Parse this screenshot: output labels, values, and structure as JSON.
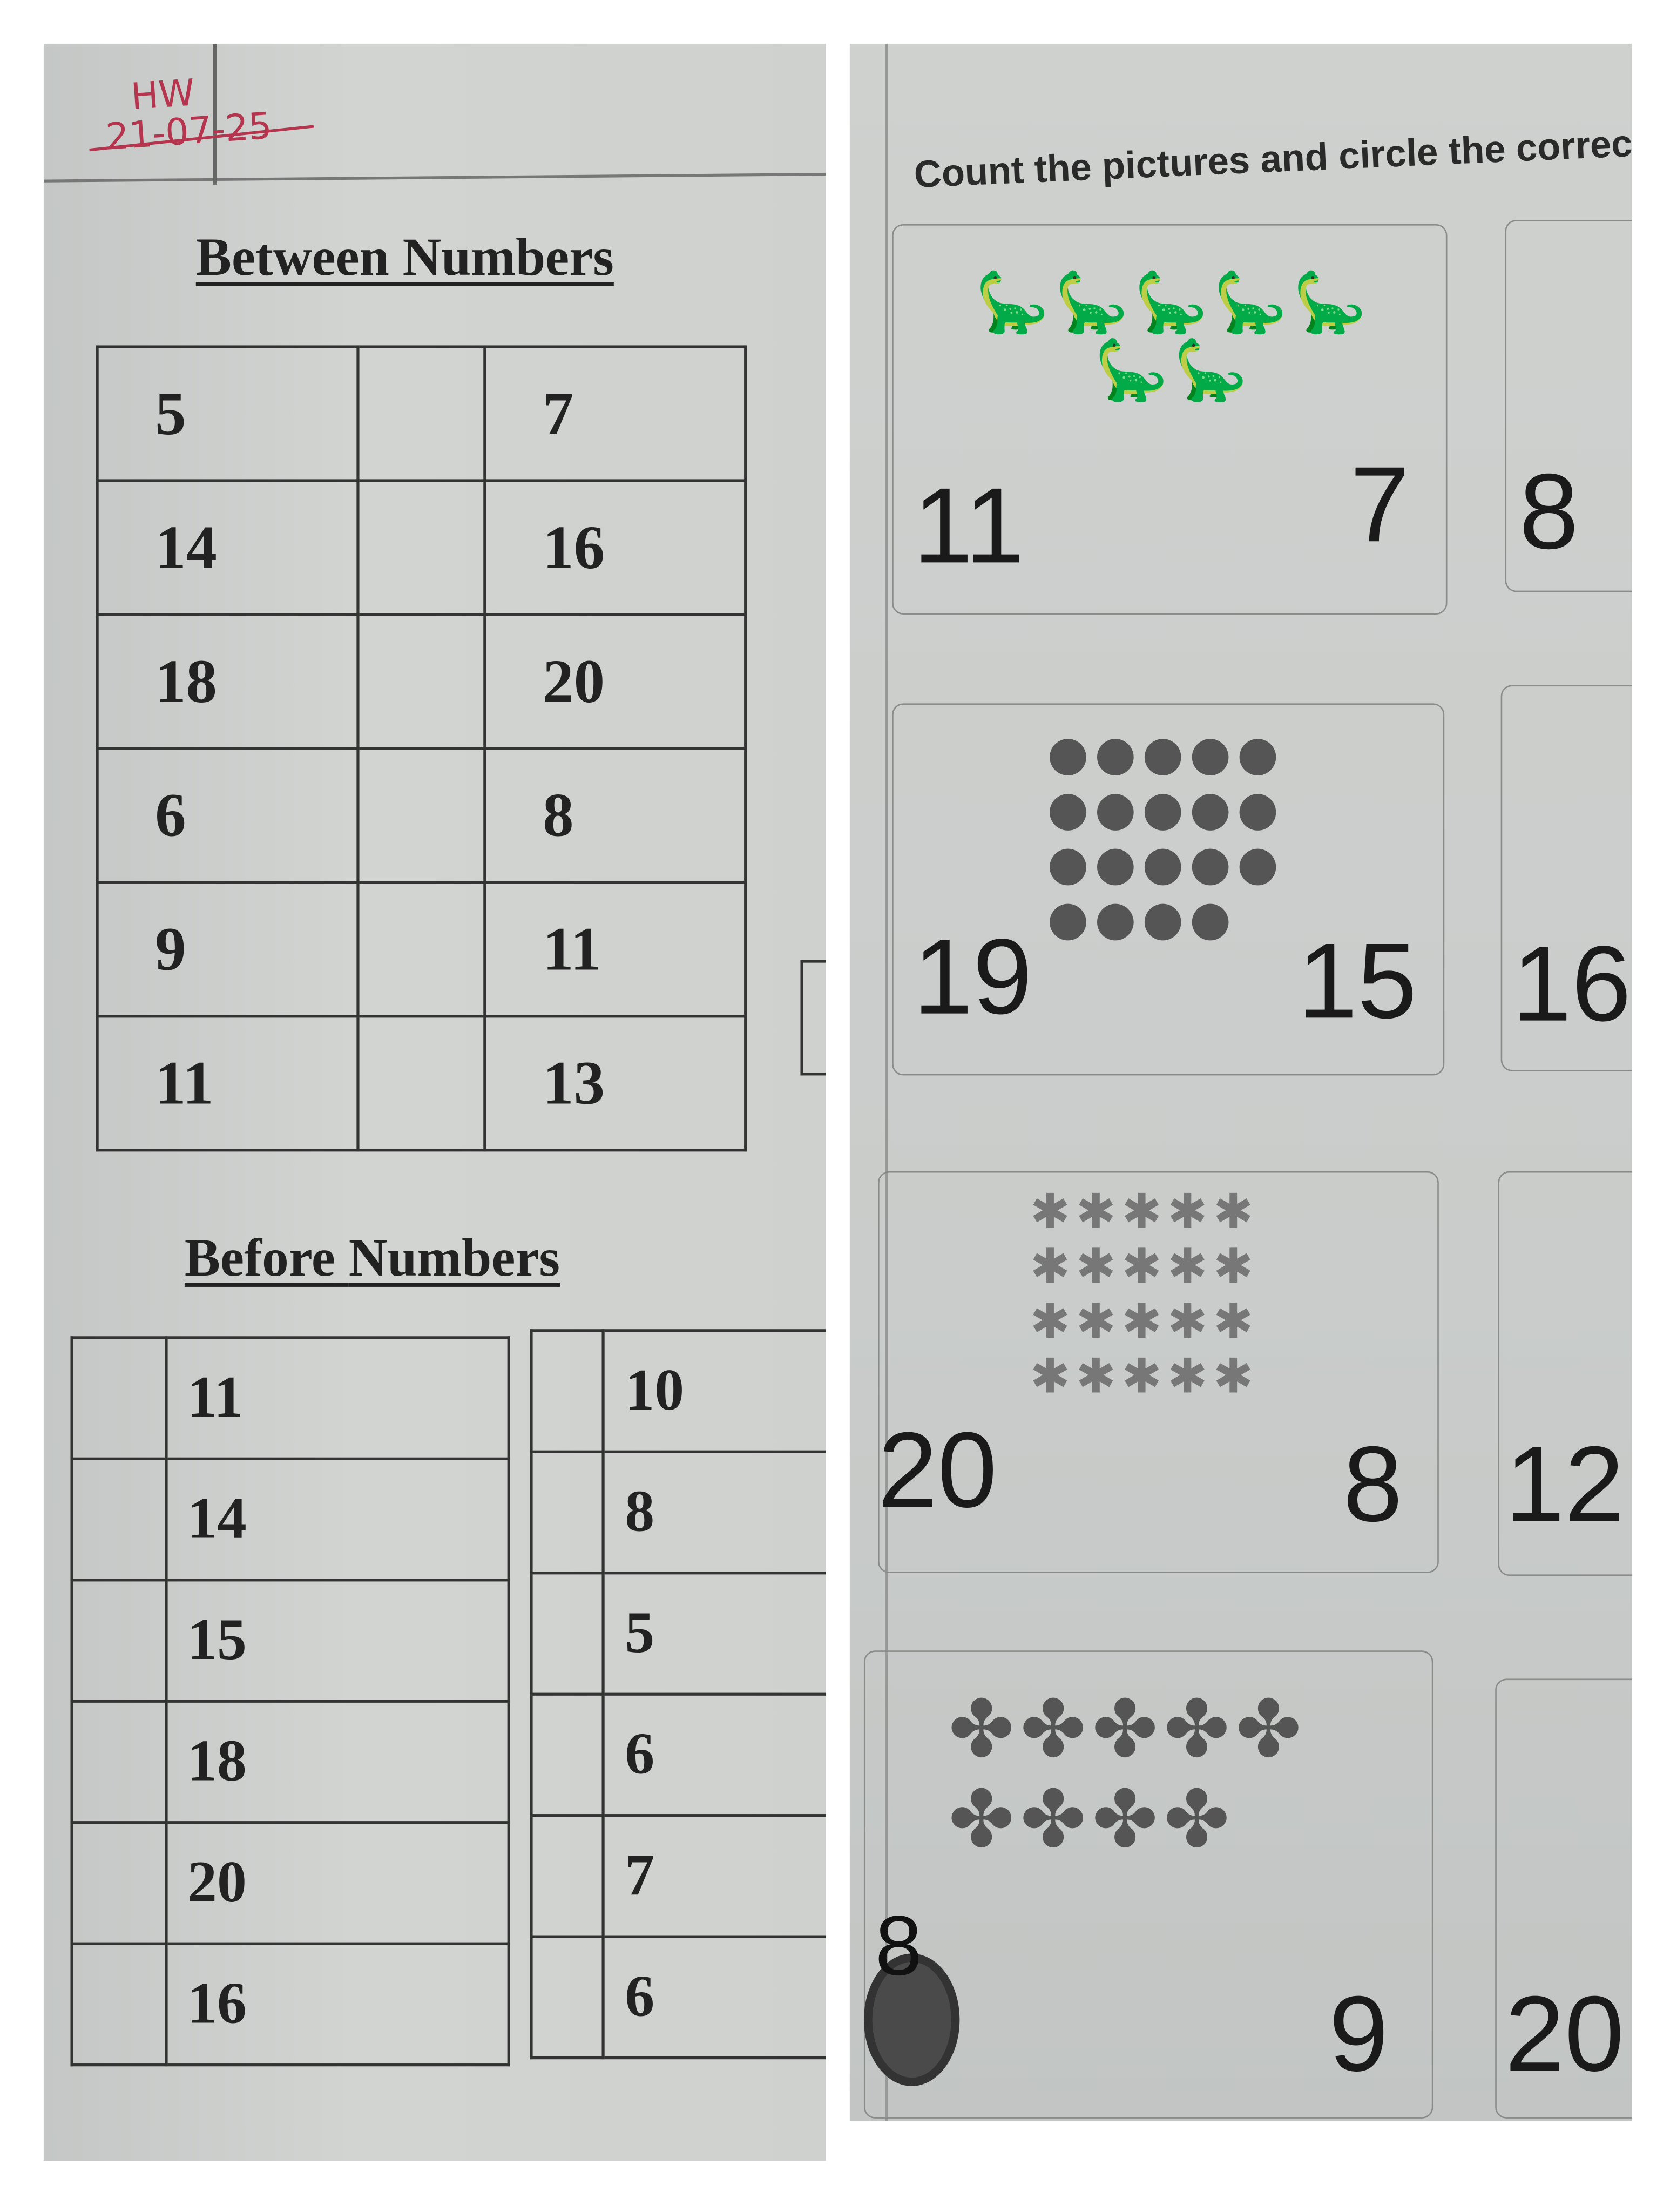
{
  "header": {
    "note": "HW",
    "date": "21-07-25",
    "ink_color": "#b5354f"
  },
  "between": {
    "title": "Between Numbers",
    "rows": [
      [
        "5",
        "",
        "7"
      ],
      [
        "14",
        "",
        "16"
      ],
      [
        "18",
        "",
        "20"
      ],
      [
        "6",
        "",
        "8"
      ],
      [
        "9",
        "",
        "11"
      ],
      [
        "11",
        "",
        "13"
      ]
    ]
  },
  "before": {
    "title_a": "Before",
    "title_b": "Numbers",
    "table_a": [
      [
        "",
        "11"
      ],
      [
        "",
        "14"
      ],
      [
        "",
        "15"
      ],
      [
        "",
        "18"
      ],
      [
        "",
        "20"
      ],
      [
        "",
        "16"
      ]
    ],
    "table_b": [
      [
        "",
        "10"
      ],
      [
        "",
        "8"
      ],
      [
        "",
        "5"
      ],
      [
        "",
        "6"
      ],
      [
        "",
        "7"
      ],
      [
        "",
        "6"
      ]
    ]
  },
  "count": {
    "instruction": "Count the pictures and circle the correct nur",
    "cards": [
      {
        "picture": "dinosaur-icon",
        "count": 7,
        "options": [
          "11",
          "7"
        ],
        "next_option": "8"
      },
      {
        "picture": "apple-icon",
        "count": 19,
        "options": [
          "19",
          "15"
        ],
        "next_option": "16"
      },
      {
        "picture": "leaf-icon",
        "count": 20,
        "options": [
          "20",
          "8"
        ],
        "next_option": "12"
      },
      {
        "picture": "butterfly-icon",
        "count": 9,
        "options": [
          "8",
          "9"
        ],
        "next_option": "20",
        "circled": "8"
      }
    ]
  }
}
